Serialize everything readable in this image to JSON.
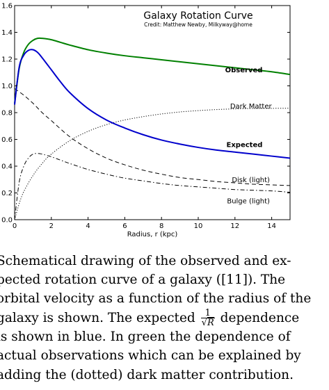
{
  "chart_data": {
    "type": "line",
    "title": "Galaxy Rotation Curve",
    "subtitle": "Credit:  Matthew Newby, Milkyway@home",
    "xlabel": "Radius, r (kpc)",
    "ylabel": "",
    "xlim": [
      0,
      15
    ],
    "ylim": [
      0,
      1.6
    ],
    "x_ticks": [
      "0",
      "2",
      "4",
      "6",
      "8",
      "10",
      "12",
      "14"
    ],
    "y_ticks": [
      "0.0",
      "0.2",
      "0.4",
      "0.6",
      "0.8",
      "1.0",
      "1.2",
      "1.4",
      "1.6"
    ],
    "grid": false,
    "series": [
      {
        "name": "Observed",
        "color": "#008000",
        "style": "solid",
        "width": 2,
        "x": [
          0,
          0.25,
          0.5,
          0.75,
          1.0,
          1.25,
          1.5,
          2,
          2.5,
          3,
          4,
          5,
          6,
          7,
          8,
          9,
          10,
          11,
          12,
          13,
          14,
          15
        ],
        "y": [
          0.87,
          1.13,
          1.25,
          1.31,
          1.34,
          1.355,
          1.355,
          1.345,
          1.325,
          1.305,
          1.27,
          1.245,
          1.225,
          1.21,
          1.195,
          1.18,
          1.165,
          1.15,
          1.135,
          1.12,
          1.105,
          1.085
        ]
      },
      {
        "name": "Expected",
        "color": "#0000cc",
        "style": "solid",
        "width": 2,
        "x": [
          0,
          0.25,
          0.5,
          0.75,
          1.0,
          1.25,
          1.5,
          2,
          2.5,
          3,
          4,
          5,
          6,
          7,
          8,
          9,
          10,
          11,
          12,
          13,
          14,
          15
        ],
        "y": [
          0.86,
          1.14,
          1.23,
          1.265,
          1.27,
          1.25,
          1.21,
          1.12,
          1.03,
          0.95,
          0.83,
          0.745,
          0.685,
          0.635,
          0.595,
          0.565,
          0.54,
          0.52,
          0.505,
          0.49,
          0.475,
          0.46
        ]
      },
      {
        "name": "Dark Matter",
        "color": "#000000",
        "style": "dotted",
        "width": 1,
        "x": [
          0,
          0.25,
          0.5,
          1,
          1.5,
          2,
          3,
          4,
          5,
          6,
          7,
          8,
          9,
          10,
          11,
          12,
          13,
          14,
          15
        ],
        "y": [
          0.0,
          0.12,
          0.21,
          0.33,
          0.42,
          0.49,
          0.59,
          0.66,
          0.71,
          0.745,
          0.77,
          0.79,
          0.805,
          0.815,
          0.823,
          0.828,
          0.831,
          0.832,
          0.833
        ]
      },
      {
        "name": "Disk (light)",
        "color": "#000000",
        "style": "dashed",
        "width": 1,
        "x": [
          0,
          0.5,
          1,
          1.5,
          2,
          3,
          4,
          5,
          6,
          7,
          8,
          9,
          10,
          11,
          12,
          13,
          14,
          15
        ],
        "y": [
          0.98,
          0.93,
          0.87,
          0.8,
          0.74,
          0.62,
          0.53,
          0.46,
          0.41,
          0.37,
          0.34,
          0.315,
          0.3,
          0.285,
          0.275,
          0.265,
          0.26,
          0.255
        ]
      },
      {
        "name": "Bulge (light)",
        "color": "#000000",
        "style": "dashdot",
        "width": 1,
        "x": [
          0,
          0.25,
          0.5,
          0.75,
          1,
          1.25,
          1.5,
          2,
          2.5,
          3,
          4,
          5,
          6,
          7,
          8,
          9,
          10,
          11,
          12,
          13,
          14,
          15
        ],
        "y": [
          0.0,
          0.28,
          0.4,
          0.46,
          0.49,
          0.495,
          0.49,
          0.47,
          0.445,
          0.42,
          0.375,
          0.34,
          0.31,
          0.29,
          0.27,
          0.255,
          0.245,
          0.235,
          0.225,
          0.22,
          0.215,
          0.205
        ]
      }
    ],
    "annotations": [
      {
        "text": "Observed",
        "x": 13.5,
        "y": 1.12,
        "weight": "bold"
      },
      {
        "text": "Dark Matter",
        "x": 14.0,
        "y": 0.85,
        "weight": "normal"
      },
      {
        "text": "Expected",
        "x": 13.5,
        "y": 0.56,
        "weight": "bold"
      },
      {
        "text": "Disk (light)",
        "x": 13.9,
        "y": 0.3,
        "weight": "normal"
      },
      {
        "text": "Bulge (light)",
        "x": 13.9,
        "y": 0.14,
        "weight": "normal"
      }
    ]
  },
  "caption": {
    "line1": "Schematical drawing of the observed and ex-",
    "line2": "pected rotation curve of a galaxy ([11]).  The",
    "line3": "orbital velocity as a function of the radius of the",
    "line4_pre": "galaxy is shown.  The expected",
    "frac_num": "1",
    "frac_den": "R",
    "line4_post": "dependence",
    "line5": "is shown in blue.  In green the dependence of",
    "line6": "actual observations which can be explained by",
    "line7": "adding the (dotted) dark matter contribution."
  }
}
